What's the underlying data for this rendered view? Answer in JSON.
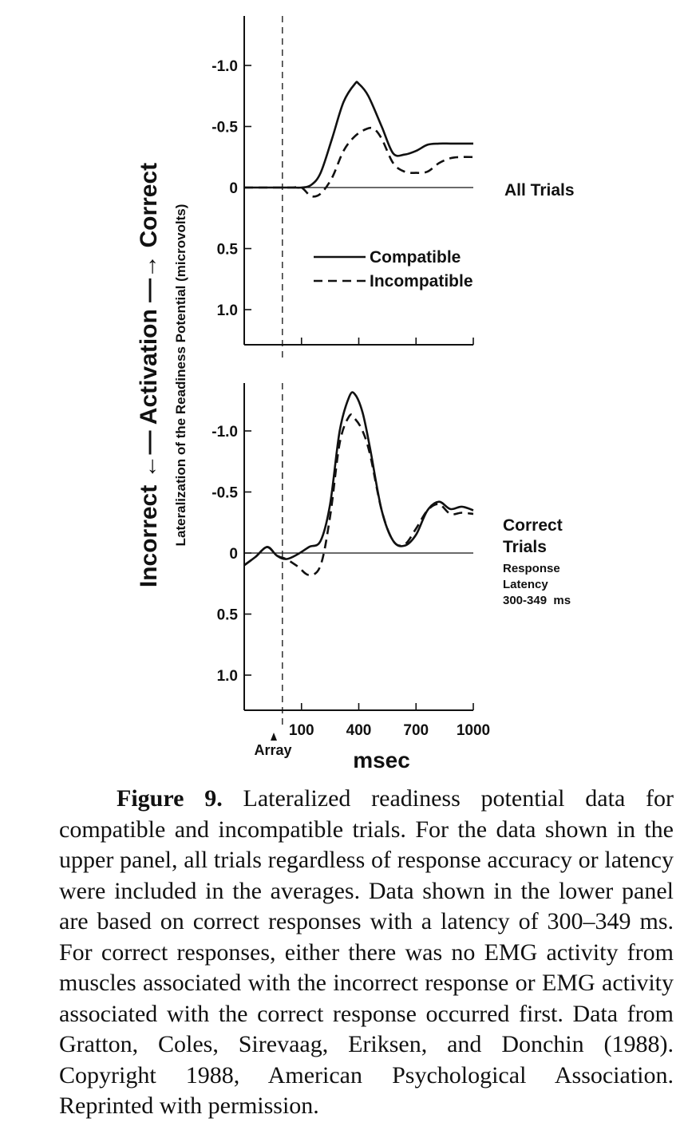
{
  "chart_data": [
    {
      "type": "line",
      "panel_label": "All Trials",
      "ylim": [
        1.3,
        -1.4
      ],
      "yticks": [
        -1.0,
        -0.5,
        0,
        0.5,
        1.0
      ],
      "ytick_labels": [
        "-1.0",
        "-0.5",
        "0",
        "0.5",
        "1.0"
      ],
      "xlim": [
        -200,
        1000
      ],
      "array_onset": 0,
      "legend": {
        "placement": "center",
        "entries": [
          "Compatible",
          "Incompatible"
        ]
      },
      "series": [
        {
          "name": "Compatible",
          "style": "solid",
          "x": [
            -200,
            -50,
            50,
            100,
            150,
            200,
            260,
            320,
            380,
            400,
            450,
            520,
            580,
            640,
            700,
            760,
            820,
            880,
            940,
            1000
          ],
          "y": [
            0,
            0,
            0,
            0,
            -0.02,
            -0.12,
            -0.4,
            -0.7,
            -0.85,
            -0.85,
            -0.75,
            -0.5,
            -0.28,
            -0.27,
            -0.3,
            -0.35,
            -0.36,
            -0.36,
            -0.36,
            -0.36
          ]
        },
        {
          "name": "Incompatible",
          "style": "dashed",
          "x": [
            -200,
            -50,
            50,
            100,
            150,
            200,
            260,
            320,
            380,
            440,
            480,
            520,
            580,
            640,
            700,
            760,
            820,
            880,
            940,
            1000
          ],
          "y": [
            0,
            0,
            0,
            0,
            0.07,
            0.05,
            -0.08,
            -0.3,
            -0.42,
            -0.48,
            -0.48,
            -0.4,
            -0.2,
            -0.13,
            -0.12,
            -0.13,
            -0.2,
            -0.24,
            -0.25,
            -0.25
          ]
        }
      ]
    },
    {
      "type": "line",
      "panel_label": "Correct Trials",
      "panel_sublabel": [
        "Response",
        "Latency",
        "300-349  ms"
      ],
      "ylim": [
        1.3,
        -1.4
      ],
      "yticks": [
        -1.0,
        -0.5,
        0,
        0.5,
        1.0
      ],
      "ytick_labels": [
        "-1.0",
        "-0.5",
        "0",
        "0.5",
        "1.0"
      ],
      "xlim": [
        -200,
        1000
      ],
      "xticks": [
        100,
        400,
        700,
        1000
      ],
      "xtick_labels": [
        "100",
        "400",
        "700",
        "1000"
      ],
      "array_onset": 0,
      "xlabel": "msec",
      "series": [
        {
          "name": "Compatible",
          "style": "solid",
          "x": [
            -200,
            -140,
            -80,
            -30,
            20,
            80,
            140,
            200,
            250,
            300,
            350,
            380,
            420,
            460,
            520,
            580,
            640,
            700,
            760,
            820,
            880,
            940,
            1000
          ],
          "y": [
            0.1,
            0.03,
            -0.05,
            0.02,
            0.05,
            0.01,
            -0.05,
            -0.1,
            -0.4,
            -1.0,
            -1.28,
            -1.3,
            -1.15,
            -0.85,
            -0.35,
            -0.1,
            -0.06,
            -0.15,
            -0.35,
            -0.42,
            -0.36,
            -0.38,
            -0.35
          ]
        },
        {
          "name": "Incompatible",
          "style": "dashed",
          "x": [
            -200,
            -140,
            -80,
            -30,
            20,
            80,
            140,
            200,
            250,
            300,
            350,
            380,
            420,
            460,
            520,
            580,
            640,
            700,
            760,
            820,
            880,
            940,
            1000
          ],
          "y": [
            0.1,
            0.03,
            -0.05,
            0.02,
            0.05,
            0.11,
            0.18,
            0.1,
            -0.3,
            -0.9,
            -1.12,
            -1.1,
            -1.0,
            -0.8,
            -0.35,
            -0.1,
            -0.07,
            -0.2,
            -0.35,
            -0.4,
            -0.32,
            -0.33,
            -0.32
          ]
        }
      ]
    }
  ],
  "y_axis": {
    "outer_label": "Incorrect ←— Activation —→ Correct",
    "inner_label": "Lateralization of the Readiness Potential  (microvolts)"
  },
  "array_marker_label": "Array",
  "caption": {
    "figure_label": "Figure 9.",
    "text": " Lateralized readiness potential data for compatible and incompatible trials. For the data shown in the upper panel, all trials regardless of response accuracy or latency were included in the averages. Data shown in the lower panel are based on correct responses with a latency of 300–349 ms. For correct responses, either there was no EMG activity from muscles associated with the incorrect response or EMG activity associated with the correct response occurred first. Data from Gratton, Coles, Sirevaag, Eriksen, and Donchin (1988). Copyright 1988, American Psychological Association. Reprinted with permission."
  },
  "colors": {
    "ink": "#111111",
    "background": "#ffffff"
  }
}
